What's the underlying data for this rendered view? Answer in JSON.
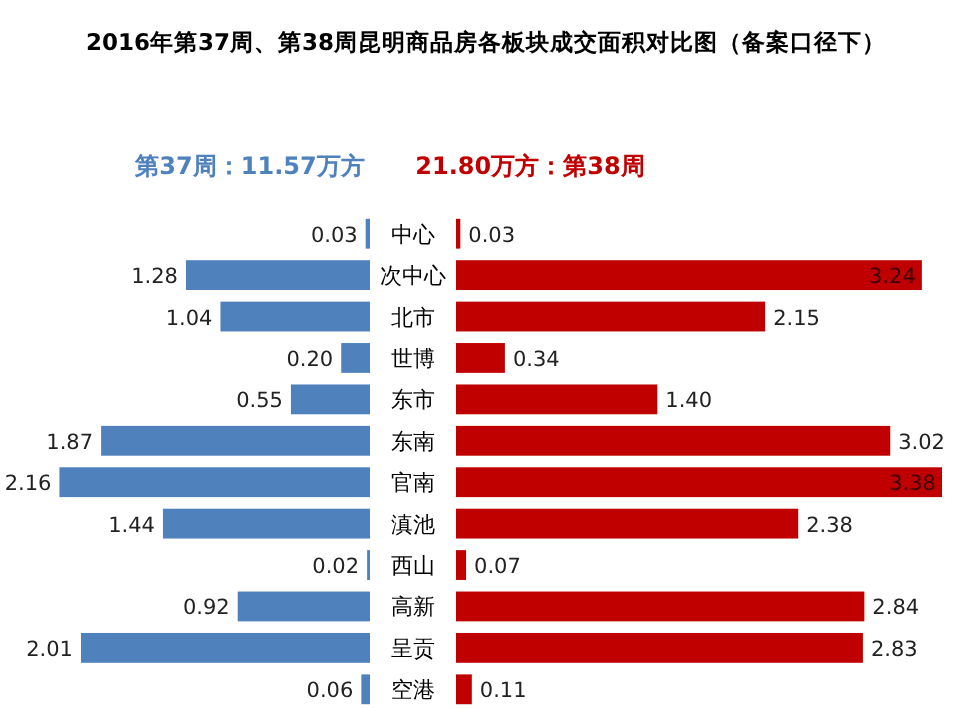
{
  "chart_data": [
    {
      "type": "bar",
      "orientation": "horizontal",
      "title": "2016年第37周、第38周昆明商品房各板块成交面积对比图（备案口径下）",
      "categories": [
        "中心",
        "次中心",
        "北市",
        "世博",
        "东市",
        "东南",
        "官南",
        "滇池",
        "西山",
        "高新",
        "呈贡",
        "空港"
      ],
      "series": [
        {
          "name": "第37周：11.57万方",
          "color": "#4f81bd",
          "values": [
            0.03,
            1.28,
            1.04,
            0.2,
            0.55,
            1.87,
            2.16,
            1.44,
            0.02,
            0.92,
            2.01,
            0.06
          ],
          "value_labels": [
            "0.03",
            "1.28",
            "1.04",
            "0.20",
            "0.55",
            "1.87",
            "2.16",
            "1.44",
            "0.02",
            "0.92",
            "2.01",
            "0.06"
          ]
        }
      ]
    },
    {
      "type": "bar",
      "orientation": "horizontal",
      "categories": [
        null,
        null,
        null,
        null,
        null,
        null,
        null,
        null,
        null,
        null,
        null,
        null
      ],
      "series": [
        {
          "name": "21.80万方：第38周",
          "color": "#c00000",
          "values": [
            0.03,
            3.24,
            2.15,
            0.34,
            1.4,
            3.02,
            3.38,
            2.38,
            0.07,
            2.84,
            2.83,
            0.11
          ],
          "value_labels": [
            "0.03",
            "3.24",
            "2.15",
            "0.34",
            "1.40",
            "3.02",
            "3.38",
            "2.38",
            "0.07",
            "2.84",
            "2.83",
            "0.11"
          ]
        }
      ]
    }
  ]
}
